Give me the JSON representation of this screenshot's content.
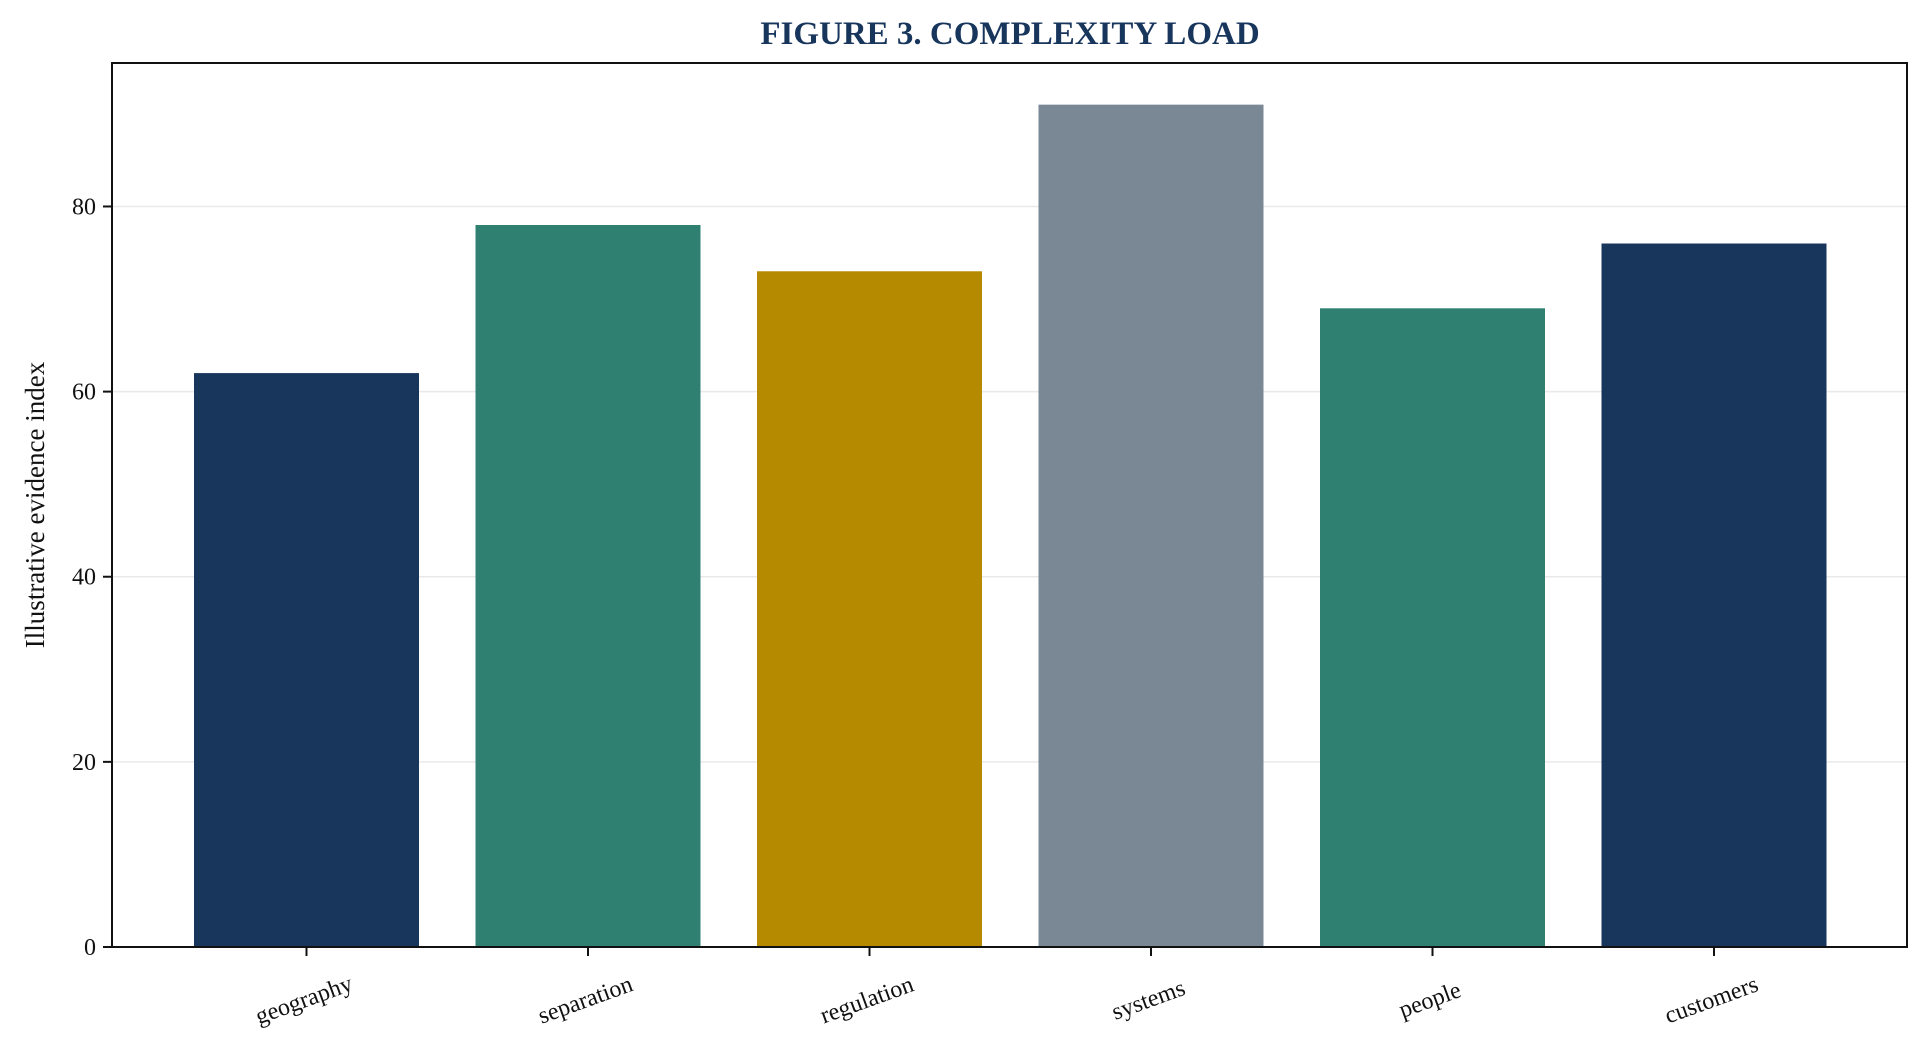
{
  "chart_data": {
    "type": "bar",
    "title": "FIGURE 3. COMPLEXITY LOAD",
    "xlabel": "",
    "ylabel": "Illustrative evidence index",
    "categories": [
      "geography",
      "separation",
      "regulation",
      "systems",
      "people",
      "customers"
    ],
    "values": [
      62,
      78,
      73,
      91,
      69,
      76
    ],
    "bar_colors": [
      "#18365c",
      "#2f8070",
      "#b58a00",
      "#7a8794",
      "#2f8070",
      "#18365c"
    ],
    "title_color": "#18365c",
    "ylim": [
      0,
      95.5
    ],
    "yticks": [
      0,
      20,
      40,
      60,
      80
    ],
    "ytick_labels": [
      "0",
      "20",
      "40",
      "60",
      "80"
    ],
    "grid": "horizontal",
    "grid_color": "#e9e9e9",
    "legend": "none"
  }
}
